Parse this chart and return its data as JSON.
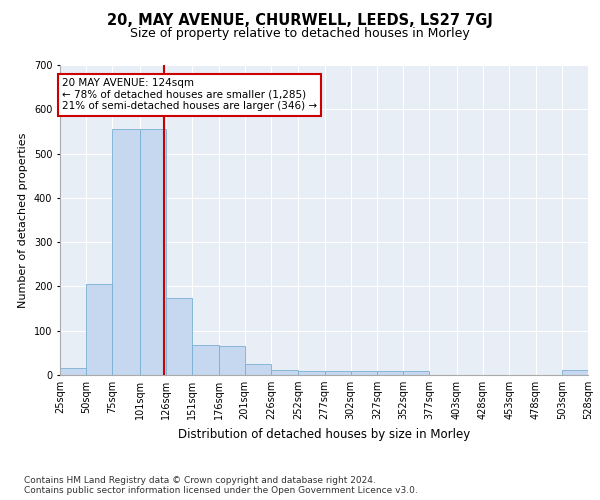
{
  "title": "20, MAY AVENUE, CHURWELL, LEEDS, LS27 7GJ",
  "subtitle": "Size of property relative to detached houses in Morley",
  "xlabel": "Distribution of detached houses by size in Morley",
  "ylabel": "Number of detached properties",
  "bar_color": "#c5d8ef",
  "bar_edge_color": "#7aafd4",
  "background_color": "#e8eef6",
  "grid_color": "#ffffff",
  "property_size": 124,
  "property_line_color": "#cc0000",
  "annotation_text": "20 MAY AVENUE: 124sqm\n← 78% of detached houses are smaller (1,285)\n21% of semi-detached houses are larger (346) →",
  "annotation_box_color": "#ffffff",
  "annotation_box_edge_color": "#cc0000",
  "bin_edges": [
    25,
    50,
    75,
    101,
    126,
    151,
    176,
    201,
    226,
    252,
    277,
    302,
    327,
    352,
    377,
    403,
    428,
    453,
    478,
    503,
    528
  ],
  "bin_labels": [
    "25sqm",
    "50sqm",
    "75sqm",
    "101sqm",
    "126sqm",
    "151sqm",
    "176sqm",
    "201sqm",
    "226sqm",
    "252sqm",
    "277sqm",
    "302sqm",
    "327sqm",
    "352sqm",
    "377sqm",
    "403sqm",
    "428sqm",
    "453sqm",
    "478sqm",
    "503sqm",
    "528sqm"
  ],
  "bar_heights": [
    15,
    205,
    555,
    555,
    175,
    68,
    65,
    25,
    12,
    8,
    8,
    8,
    8,
    8,
    0,
    0,
    0,
    0,
    0,
    12
  ],
  "ylim": [
    0,
    700
  ],
  "yticks": [
    0,
    100,
    200,
    300,
    400,
    500,
    600,
    700
  ],
  "footnote": "Contains HM Land Registry data © Crown copyright and database right 2024.\nContains public sector information licensed under the Open Government Licence v3.0.",
  "annotation_fontsize": 7.5,
  "title_fontsize": 10.5,
  "subtitle_fontsize": 9,
  "xlabel_fontsize": 8.5,
  "ylabel_fontsize": 8,
  "tick_fontsize": 7,
  "footnote_fontsize": 6.5
}
